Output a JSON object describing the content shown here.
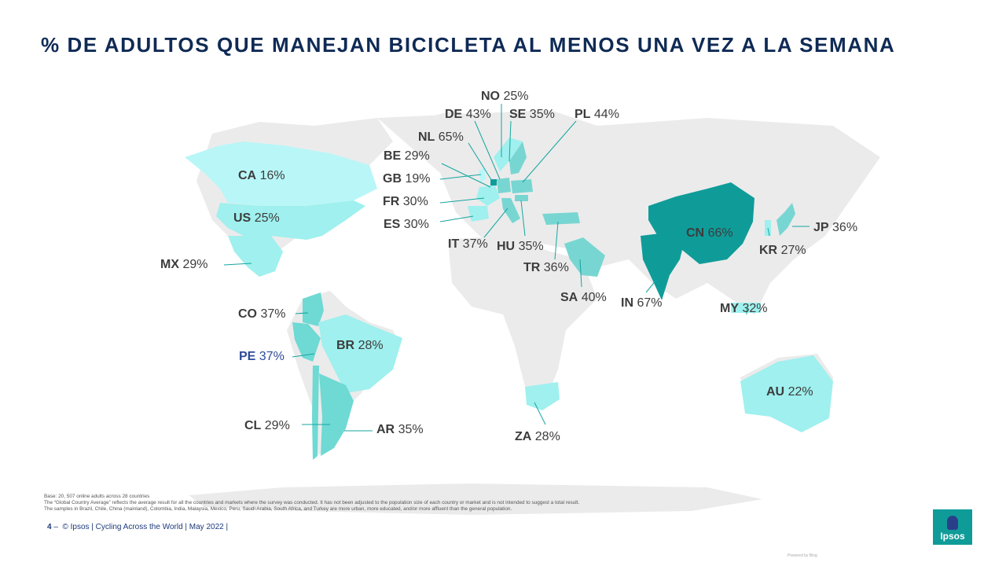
{
  "slide": {
    "title": "% DE ADULTOS QUE MANEJAN BICICLETA AL MENOS UNA VEZ A LA SEMANA",
    "colors": {
      "title": "#0f2a55",
      "land": "#ebebeb",
      "scale_low": "#b9f6f7",
      "scale_mid": "#78d6d2",
      "scale_high": "#0f9c99"
    }
  },
  "countries": [
    {
      "code": "NO",
      "value": "25%"
    },
    {
      "code": "DE",
      "value": "43%"
    },
    {
      "code": "SE",
      "value": "35%"
    },
    {
      "code": "PL",
      "value": "44%"
    },
    {
      "code": "NL",
      "value": "65%"
    },
    {
      "code": "BE",
      "value": "29%"
    },
    {
      "code": "CA",
      "value": "16%"
    },
    {
      "code": "GB",
      "value": "19%"
    },
    {
      "code": "FR",
      "value": "30%"
    },
    {
      "code": "US",
      "value": "25%"
    },
    {
      "code": "ES",
      "value": "30%"
    },
    {
      "code": "JP",
      "value": "36%"
    },
    {
      "code": "CN",
      "value": "66%"
    },
    {
      "code": "IT",
      "value": "37%"
    },
    {
      "code": "HU",
      "value": "35%"
    },
    {
      "code": "KR",
      "value": "27%"
    },
    {
      "code": "MX",
      "value": "29%"
    },
    {
      "code": "TR",
      "value": "36%"
    },
    {
      "code": "SA",
      "value": "40%"
    },
    {
      "code": "IN",
      "value": "67%"
    },
    {
      "code": "MY",
      "value": "32%"
    },
    {
      "code": "CO",
      "value": "37%"
    },
    {
      "code": "BR",
      "value": "28%"
    },
    {
      "code": "PE",
      "value": "37%"
    },
    {
      "code": "AU",
      "value": "22%"
    },
    {
      "code": "CL",
      "value": "29%"
    },
    {
      "code": "AR",
      "value": "35%"
    },
    {
      "code": "ZA",
      "value": "28%"
    }
  ],
  "notes": {
    "base": "Base: 20, 507 online adults across 28 countries",
    "average": "The “Global Country Average” reflects the average result for all the countries and markets where the survey was conducted.  It has not been adjusted to the population  size of each country or market and is not intended  to suggest  a total  result.",
    "samples": "The samples in Brazil, Chile, China (mainland),  Colombia, India, Malaysia, Mexico, Peru, Saudi Arabia, South Africa, and Turkey are more urban,  more educated,  and/or more affluent  than the general  population."
  },
  "footer": {
    "page": "4",
    "separator": "–",
    "text": "© Ipsos | Cycling Across the World | May 2022 | "
  },
  "logo": {
    "text": "Ipsos"
  },
  "source": "Powered by Bing"
}
